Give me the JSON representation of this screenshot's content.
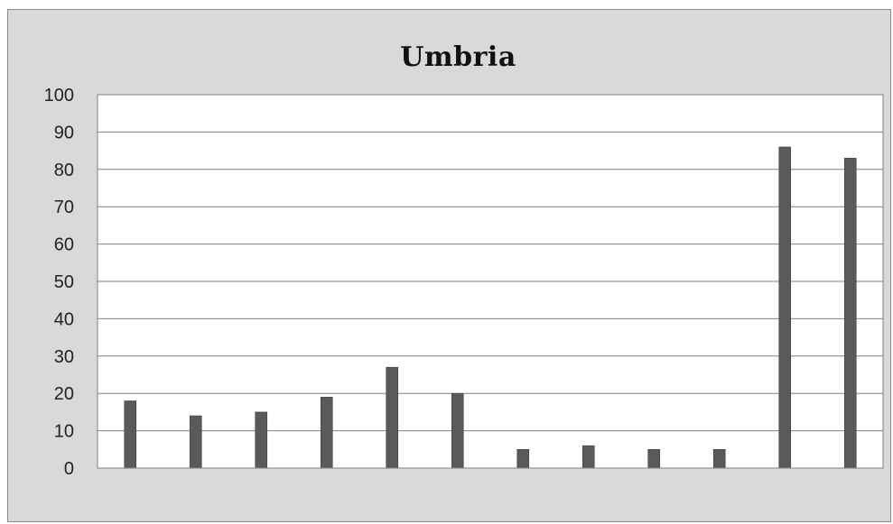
{
  "chart_data": {
    "type": "bar",
    "title": "Umbria",
    "xlabel": "",
    "ylabel": "",
    "categories": [
      "",
      "",
      "",
      "",
      "",
      "",
      "",
      "",
      "",
      "",
      "",
      ""
    ],
    "values": [
      18,
      14,
      15,
      19,
      27,
      20,
      5,
      6,
      5,
      5,
      86,
      83
    ],
    "ylim": [
      0,
      100
    ],
    "yticks": [
      "0",
      "10",
      "20",
      "30",
      "40",
      "50",
      "60",
      "70",
      "80",
      "90",
      "100"
    ],
    "grid": true,
    "legend": "none",
    "colors": {
      "bar": "#5a5a5a",
      "plot_background": "#ffffff",
      "chart_background": "#d9d9d9",
      "gridline": "#808080"
    }
  }
}
